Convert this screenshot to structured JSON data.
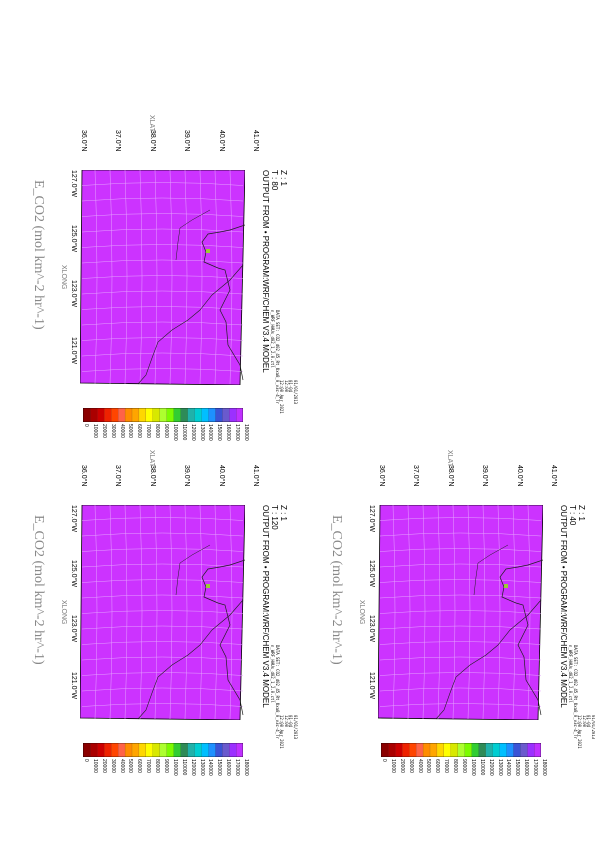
{
  "colors": {
    "plot_fill": "#cc33ff",
    "grid_line": "#e6a3ff",
    "map_line": "#202020",
    "hotspot": "#9acd32",
    "colorbar": [
      "#c030ff",
      "#9b30ff",
      "#6a5acd",
      "#3a53d6",
      "#1e90ff",
      "#00bfff",
      "#00ced1",
      "#20b2aa",
      "#2e8b57",
      "#32cd32",
      "#7cfc00",
      "#adff2f",
      "#d8e800",
      "#ffff00",
      "#ffd700",
      "#ffa500",
      "#ff8c00",
      "#ff6347",
      "#ff4500",
      "#ee2200",
      "#cc0000",
      "#aa0000",
      "#8b0000"
    ]
  },
  "panels": [
    {
      "id": "panel-1",
      "zlevel": "Z : 1",
      "time": "T : 40",
      "header": "OUTPUT FROM • PROGRAM:WRF/CHEM V3.4 MODEL",
      "dataset": "DATA SET: CO2_d02_45_Rt_Uxa8_0_v3c-4_Tr",
      "dataset_sub": "n_WRF_HAUs_d02_1_2.0.ctl",
      "date": [
        "01/01/2013",
        "01-04 ",
        "12:00",
        "12:00 Apr 2021"
      ]
    },
    {
      "id": "panel-2",
      "zlevel": "Z : 1",
      "time": "T : 80",
      "header": "OUTPUT FROM • PROGRAM:WRF/CHEM V3.4 MODEL",
      "dataset": "DATA SET: CO2_d02_45_Rt_Uxa8_0_v3c-4_Tr",
      "dataset_sub": "n_WRF_HAUs_d02_1_2.0.ctl",
      "date": [
        "01/01/2013",
        "01-04 ",
        "12:00",
        "12:00 Apr 2021"
      ]
    },
    {
      "id": "panel-3",
      "zlevel": "Z : 1",
      "time": "T : 120",
      "header": "OUTPUT FROM • PROGRAM:WRF/CHEM V3.4 MODEL",
      "dataset": "DATA SET: CO2_d02_45_Rt_Uxa8_0_v3c-4_Tr",
      "dataset_sub": "n_WRF_HAUs_d02_1_2.0.ctl",
      "date": [
        "01/01/2013",
        "01-04 ",
        "12:00",
        "12:00 Apr 2021"
      ]
    }
  ],
  "common": {
    "lat_title": "XLAT",
    "lon_title": "XLONG",
    "lat_ticks": [
      "41.0°N",
      "40.0°N",
      "39.0°N",
      "38.0°N",
      "37.0°N",
      "36.0°N"
    ],
    "lon_ticks": [
      "127.0°W",
      "125.0°W",
      "123.0°W",
      "121.0°W"
    ],
    "var_title": "E_CO2 (mol km^-2 hr^-1)",
    "colorbar_labels": [
      "180000",
      "170000",
      "160000",
      "150000",
      "140000",
      "130000",
      "120000",
      "110000",
      "100000",
      "90000",
      "80000",
      "70000",
      "60000",
      "50000",
      "40000",
      "30000",
      "20000",
      "10000",
      "0"
    ]
  }
}
